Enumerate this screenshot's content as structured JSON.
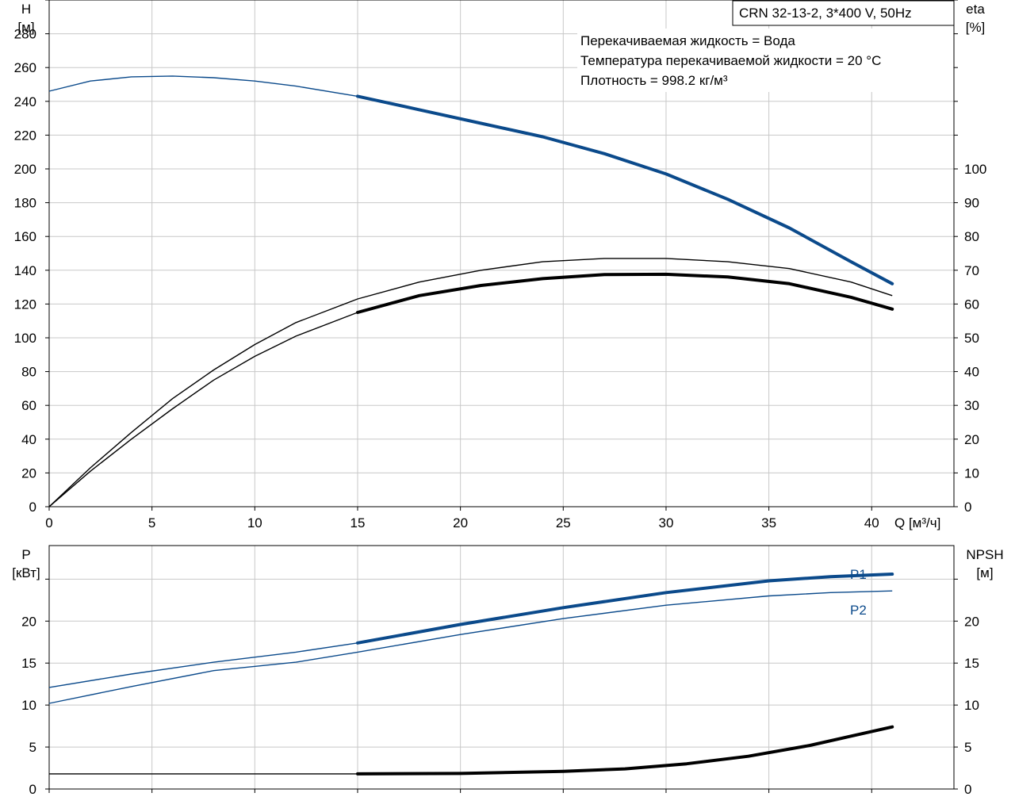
{
  "chart_data": [
    {
      "type": "line",
      "title": "CRN 32-13-2, 3*400 V, 50Hz",
      "annotations": [
        "Перекачиваемая жидкость = Вода",
        "Температура перекачиваемой жидкости = 20 °C",
        "Плотность = 998.2 кг/м³"
      ],
      "xlabel": "Q [м³/ч]",
      "xlim": [
        0,
        44
      ],
      "x_ticks": [
        0,
        5,
        10,
        15,
        20,
        25,
        30,
        35,
        40
      ],
      "ylabel_left_line1": "H",
      "ylabel_left_line2": "[м]",
      "ylim_left": [
        0,
        300
      ],
      "y_ticks_left": [
        0,
        20,
        40,
        60,
        80,
        100,
        120,
        140,
        160,
        180,
        200,
        220,
        240,
        260,
        280
      ],
      "ylabel_right_line1": "eta",
      "ylabel_right_line2": "[%]",
      "ylim_right": [
        0,
        150
      ],
      "y_ticks_right": [
        0,
        10,
        20,
        30,
        40,
        50,
        60,
        70,
        80,
        90,
        100
      ],
      "grid": true,
      "series": [
        {
          "axis": "left",
          "color": "#0b4a8b",
          "x": [
            0,
            2,
            4,
            6,
            8,
            10,
            12,
            15,
            18,
            21,
            24,
            27,
            30,
            33,
            36,
            39,
            41
          ],
          "values": [
            246,
            252,
            254.5,
            255,
            254,
            252,
            249,
            243,
            235,
            227,
            219,
            209,
            197,
            182,
            165,
            145,
            132
          ],
          "bold_from_x": 15
        },
        {
          "axis": "right",
          "color": "#000000",
          "x": [
            0,
            2,
            4,
            6,
            8,
            10,
            12,
            15,
            18,
            21,
            24,
            27,
            30,
            33,
            36,
            39,
            41
          ],
          "values": [
            0,
            11.5,
            22,
            32,
            40.5,
            48,
            54.5,
            61.5,
            66.5,
            70,
            72.5,
            73.5,
            73.5,
            72.5,
            70.5,
            66.5,
            62.5
          ],
          "bold_from_x": 100
        },
        {
          "axis": "right",
          "color": "#000000",
          "x": [
            0,
            2,
            4,
            6,
            8,
            10,
            12,
            15,
            18,
            21,
            24,
            27,
            30,
            33,
            36,
            39,
            41
          ],
          "values": [
            0,
            10.5,
            20,
            29,
            37.5,
            44.5,
            50.5,
            57.5,
            62.5,
            65.5,
            67.5,
            68.7,
            68.8,
            68,
            66,
            62,
            58.5
          ],
          "bold_from_x": 15
        }
      ]
    },
    {
      "type": "line",
      "ylabel_left_line1": "P",
      "ylabel_left_line2": "[кВт]",
      "ylim_left": [
        0,
        29
      ],
      "y_ticks_left": [
        0,
        5,
        10,
        15,
        20
      ],
      "ylabel_right_line1": "NPSH",
      "ylabel_right_line2": "[м]",
      "ylim_right": [
        0,
        29
      ],
      "y_ticks_right": [
        0,
        5,
        10,
        15,
        20
      ],
      "xlim": [
        0,
        44
      ],
      "grid": true,
      "series": [
        {
          "name": "P1",
          "axis": "left",
          "color": "#0b4a8b",
          "x": [
            0,
            4,
            8,
            12,
            15,
            20,
            25,
            30,
            35,
            38,
            41
          ],
          "values": [
            12.1,
            13.7,
            15.1,
            16.3,
            17.4,
            19.6,
            21.6,
            23.4,
            24.8,
            25.3,
            25.6
          ],
          "bold_from_x": 15
        },
        {
          "name": "P2",
          "axis": "left",
          "color": "#0b4a8b",
          "x": [
            0,
            4,
            8,
            12,
            15,
            20,
            25,
            30,
            35,
            38,
            41
          ],
          "values": [
            10.2,
            12.2,
            14.1,
            15.1,
            16.3,
            18.4,
            20.3,
            21.9,
            23.0,
            23.4,
            23.6
          ],
          "bold_from_x": 100
        },
        {
          "axis": "right",
          "color": "#000000",
          "x": [
            0,
            5,
            10,
            15,
            20,
            25,
            28,
            31,
            34,
            37,
            39,
            41
          ],
          "values": [
            1.8,
            1.8,
            1.8,
            1.8,
            1.85,
            2.1,
            2.4,
            3.0,
            3.9,
            5.2,
            6.3,
            7.4
          ],
          "bold_from_x": 15
        }
      ]
    }
  ]
}
